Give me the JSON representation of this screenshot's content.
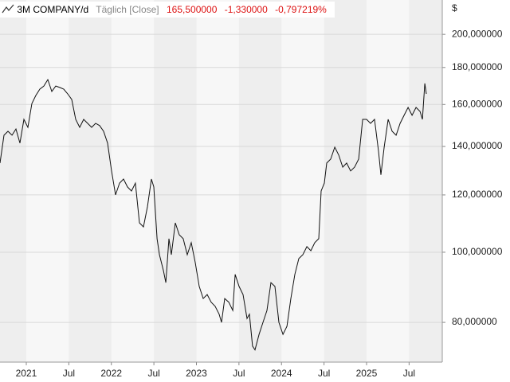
{
  "chart_data": {
    "type": "line",
    "title": "3M COMPANY/d",
    "subtitle": "Täglich [Close]",
    "quote": [
      "165,500000",
      "-1,330000",
      "-0,797219%"
    ],
    "y_unit": "$",
    "log_scale": true,
    "grid": true,
    "xlim": [
      2020.691,
      2025.89
    ],
    "xticks": [
      {
        "value": 2021,
        "label": "2021"
      },
      {
        "value": 2021.5,
        "label": "Jul"
      },
      {
        "value": 2022,
        "label": "2022"
      },
      {
        "value": 2022.5,
        "label": "Jul"
      },
      {
        "value": 2023,
        "label": "2023"
      },
      {
        "value": 2023.5,
        "label": "Jul"
      },
      {
        "value": 2024,
        "label": "2024"
      },
      {
        "value": 2024.5,
        "label": "Jul"
      },
      {
        "value": 2025,
        "label": "2025"
      },
      {
        "value": 2025.5,
        "label": "Jul"
      }
    ],
    "ylim": [
      70.5,
      223.1
    ],
    "yticks": [
      {
        "value": 80,
        "label": "80,000000"
      },
      {
        "value": 100,
        "label": "100,000000"
      },
      {
        "value": 120,
        "label": "120,000000"
      },
      {
        "value": 140,
        "label": "140,000000"
      },
      {
        "value": 160,
        "label": "160,000000"
      },
      {
        "value": 180,
        "label": "180,000000"
      },
      {
        "value": 200,
        "label": "200,000000"
      }
    ],
    "series": [
      {
        "name": "3M COMPANY",
        "color": "#111111",
        "x": [
          2020.691,
          2020.738,
          2020.785,
          2020.832,
          2020.878,
          2020.925,
          2020.972,
          2021.019,
          2021.066,
          2021.113,
          2021.159,
          2021.206,
          2021.253,
          2021.3,
          2021.347,
          2021.394,
          2021.44,
          2021.487,
          2021.534,
          2021.581,
          2021.628,
          2021.675,
          2021.721,
          2021.768,
          2021.815,
          2021.862,
          2021.909,
          2021.956,
          2022.002,
          2022.049,
          2022.096,
          2022.143,
          2022.19,
          2022.237,
          2022.283,
          2022.33,
          2022.377,
          2022.424,
          2022.471,
          2022.499,
          2022.537,
          2022.565,
          2022.612,
          2022.64,
          2022.677,
          2022.705,
          2022.752,
          2022.798,
          2022.845,
          2022.892,
          2022.939,
          2022.986,
          2023.033,
          2023.08,
          2023.127,
          2023.173,
          2023.22,
          2023.267,
          2023.295,
          2023.333,
          2023.38,
          2023.427,
          2023.455,
          2023.501,
          2023.548,
          2023.595,
          2023.623,
          2023.66,
          2023.689,
          2023.736,
          2023.782,
          2023.829,
          2023.876,
          2023.923,
          2023.97,
          2024.017,
          2024.064,
          2024.11,
          2024.157,
          2024.204,
          2024.251,
          2024.298,
          2024.345,
          2024.391,
          2024.438,
          2024.466,
          2024.504,
          2024.532,
          2024.579,
          2024.626,
          2024.673,
          2024.72,
          2024.766,
          2024.813,
          2024.86,
          2024.907,
          2024.954,
          2025.0,
          2025.047,
          2025.094,
          2025.141,
          2025.169,
          2025.207,
          2025.254,
          2025.301,
          2025.348,
          2025.394,
          2025.441,
          2025.488,
          2025.535,
          2025.582,
          2025.629,
          2025.657,
          2025.685,
          2025.703
        ],
        "values": [
          132.8,
          145.1,
          146.9,
          145.1,
          148.0,
          141.5,
          152.6,
          148.8,
          160.5,
          164.7,
          168.0,
          169.7,
          173.2,
          166.8,
          169.7,
          168.9,
          168.0,
          165.5,
          162.6,
          152.6,
          148.8,
          152.6,
          150.7,
          148.8,
          150.7,
          149.6,
          146.9,
          141.5,
          129.5,
          120.0,
          124.6,
          126.2,
          123.1,
          121.5,
          124.6,
          109.8,
          108.4,
          115.5,
          126.2,
          123.1,
          104.4,
          99.2,
          94.3,
          90.8,
          104.4,
          99.2,
          109.8,
          105.7,
          104.4,
          99.2,
          103.1,
          96.8,
          89.7,
          86.3,
          87.4,
          85.3,
          84.2,
          82.1,
          80.0,
          86.3,
          85.3,
          83.1,
          93.2,
          89.7,
          87.4,
          81.0,
          82.1,
          74.2,
          73.3,
          77.0,
          80.0,
          83.1,
          90.8,
          89.7,
          80.0,
          77.0,
          79.0,
          86.3,
          93.2,
          98.0,
          99.2,
          101.8,
          100.5,
          103.1,
          104.4,
          121.5,
          124.6,
          132.8,
          134.5,
          139.7,
          136.2,
          131.1,
          132.8,
          129.5,
          131.1,
          134.5,
          152.6,
          152.6,
          150.7,
          152.6,
          137.9,
          127.9,
          139.7,
          152.6,
          146.9,
          145.1,
          150.7,
          154.6,
          158.5,
          154.6,
          158.5,
          156.5,
          152.6,
          171.1,
          165.5
        ]
      }
    ]
  }
}
